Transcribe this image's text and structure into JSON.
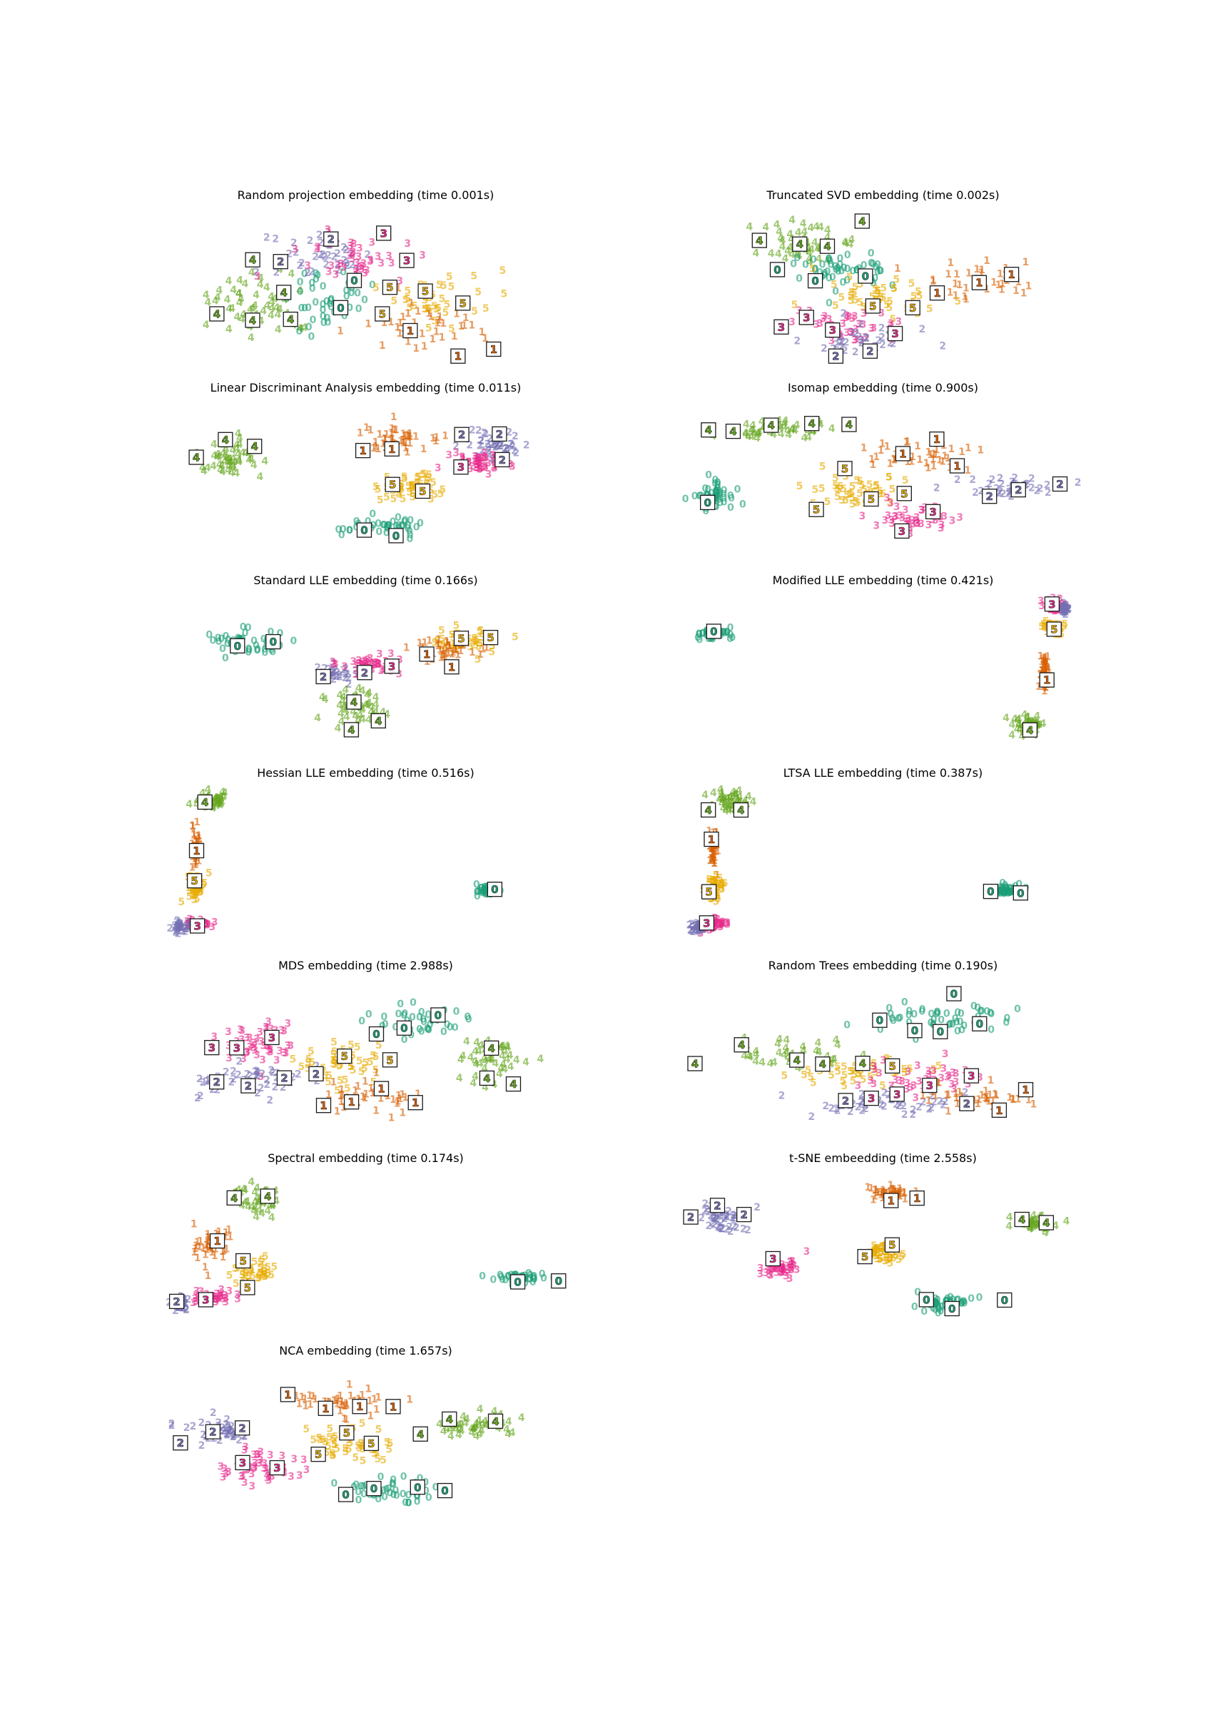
{
  "colors": {
    "0": "#1b9e77",
    "1": "#d95f02",
    "2": "#7570b3",
    "3": "#e7298a",
    "4": "#66a61e",
    "5": "#e6ab02"
  },
  "chart_data": [
    {
      "type": "scatter",
      "title": "Random projection embedding (time 0.001s)",
      "clusters": [
        {
          "label": "4",
          "cx": 0.24,
          "cy": 0.62,
          "sx": 0.12,
          "sy": 0.2,
          "n": 60
        },
        {
          "label": "0",
          "cx": 0.4,
          "cy": 0.56,
          "sx": 0.1,
          "sy": 0.2,
          "n": 45
        },
        {
          "label": "2",
          "cx": 0.38,
          "cy": 0.32,
          "sx": 0.12,
          "sy": 0.16,
          "n": 40
        },
        {
          "label": "3",
          "cx": 0.48,
          "cy": 0.34,
          "sx": 0.13,
          "sy": 0.16,
          "n": 45
        },
        {
          "label": "5",
          "cx": 0.66,
          "cy": 0.58,
          "sx": 0.12,
          "sy": 0.16,
          "n": 45
        },
        {
          "label": "1",
          "cx": 0.66,
          "cy": 0.78,
          "sx": 0.14,
          "sy": 0.14,
          "n": 40
        }
      ]
    },
    {
      "type": "scatter",
      "title": "Truncated SVD embedding (time 0.002s)",
      "clusters": [
        {
          "label": "4",
          "cx": 0.3,
          "cy": 0.22,
          "sx": 0.12,
          "sy": 0.1,
          "n": 55
        },
        {
          "label": "0",
          "cx": 0.4,
          "cy": 0.4,
          "sx": 0.14,
          "sy": 0.12,
          "n": 55
        },
        {
          "label": "1",
          "cx": 0.74,
          "cy": 0.45,
          "sx": 0.14,
          "sy": 0.12,
          "n": 40
        },
        {
          "label": "5",
          "cx": 0.5,
          "cy": 0.56,
          "sx": 0.14,
          "sy": 0.12,
          "n": 45
        },
        {
          "label": "3",
          "cx": 0.42,
          "cy": 0.78,
          "sx": 0.14,
          "sy": 0.1,
          "n": 45
        },
        {
          "label": "2",
          "cx": 0.44,
          "cy": 0.86,
          "sx": 0.12,
          "sy": 0.08,
          "n": 40
        }
      ]
    },
    {
      "type": "scatter",
      "title": "Linear Discriminant Analysis embedding (time 0.011s)",
      "clusters": [
        {
          "label": "4",
          "cx": 0.16,
          "cy": 0.36,
          "sx": 0.07,
          "sy": 0.12,
          "n": 55
        },
        {
          "label": "1",
          "cx": 0.58,
          "cy": 0.26,
          "sx": 0.1,
          "sy": 0.1,
          "n": 50
        },
        {
          "label": "2",
          "cx": 0.82,
          "cy": 0.28,
          "sx": 0.06,
          "sy": 0.1,
          "n": 50
        },
        {
          "label": "3",
          "cx": 0.78,
          "cy": 0.4,
          "sx": 0.07,
          "sy": 0.06,
          "n": 50
        },
        {
          "label": "5",
          "cx": 0.6,
          "cy": 0.56,
          "sx": 0.07,
          "sy": 0.08,
          "n": 50
        },
        {
          "label": "0",
          "cx": 0.54,
          "cy": 0.82,
          "sx": 0.09,
          "sy": 0.07,
          "n": 50
        }
      ]
    },
    {
      "type": "scatter",
      "title": "Isomap embedding (time 0.900s)",
      "clusters": [
        {
          "label": "4",
          "cx": 0.24,
          "cy": 0.18,
          "sx": 0.14,
          "sy": 0.06,
          "n": 55
        },
        {
          "label": "1",
          "cx": 0.6,
          "cy": 0.36,
          "sx": 0.12,
          "sy": 0.08,
          "n": 45
        },
        {
          "label": "0",
          "cx": 0.08,
          "cy": 0.62,
          "sx": 0.05,
          "sy": 0.08,
          "n": 50
        },
        {
          "label": "5",
          "cx": 0.44,
          "cy": 0.58,
          "sx": 0.12,
          "sy": 0.1,
          "n": 50
        },
        {
          "label": "2",
          "cx": 0.84,
          "cy": 0.56,
          "sx": 0.1,
          "sy": 0.05,
          "n": 45
        },
        {
          "label": "3",
          "cx": 0.58,
          "cy": 0.76,
          "sx": 0.1,
          "sy": 0.08,
          "n": 45
        }
      ]
    },
    {
      "type": "scatter",
      "title": "Standard LLE embedding (time 0.166s)",
      "clusters": [
        {
          "label": "0",
          "cx": 0.2,
          "cy": 0.32,
          "sx": 0.08,
          "sy": 0.08,
          "n": 55
        },
        {
          "label": "2",
          "cx": 0.42,
          "cy": 0.52,
          "sx": 0.06,
          "sy": 0.05,
          "n": 35
        },
        {
          "label": "3",
          "cx": 0.52,
          "cy": 0.46,
          "sx": 0.07,
          "sy": 0.05,
          "n": 45
        },
        {
          "label": "5",
          "cx": 0.74,
          "cy": 0.3,
          "sx": 0.08,
          "sy": 0.08,
          "n": 45
        },
        {
          "label": "1",
          "cx": 0.7,
          "cy": 0.36,
          "sx": 0.08,
          "sy": 0.08,
          "n": 40
        },
        {
          "label": "4",
          "cx": 0.48,
          "cy": 0.74,
          "sx": 0.06,
          "sy": 0.1,
          "n": 50
        }
      ]
    },
    {
      "type": "scatter",
      "title": "Modified LLE embedding (time 0.421s)",
      "clusters": [
        {
          "label": "0",
          "cx": 0.08,
          "cy": 0.26,
          "sx": 0.04,
          "sy": 0.04,
          "n": 50
        },
        {
          "label": "3",
          "cx": 0.92,
          "cy": 0.08,
          "sx": 0.02,
          "sy": 0.04,
          "n": 45
        },
        {
          "label": "5",
          "cx": 0.92,
          "cy": 0.22,
          "sx": 0.02,
          "sy": 0.04,
          "n": 45
        },
        {
          "label": "1",
          "cx": 0.9,
          "cy": 0.5,
          "sx": 0.01,
          "sy": 0.12,
          "n": 45
        },
        {
          "label": "4",
          "cx": 0.86,
          "cy": 0.86,
          "sx": 0.03,
          "sy": 0.06,
          "n": 50
        },
        {
          "label": "2",
          "cx": 0.95,
          "cy": 0.1,
          "sx": 0.01,
          "sy": 0.03,
          "n": 30
        }
      ]
    },
    {
      "type": "scatter",
      "title": "Hessian LLE embedding (time 0.516s)",
      "clusters": [
        {
          "label": "4",
          "cx": 0.12,
          "cy": 0.1,
          "sx": 0.04,
          "sy": 0.06,
          "n": 50
        },
        {
          "label": "1",
          "cx": 0.08,
          "cy": 0.4,
          "sx": 0.01,
          "sy": 0.12,
          "n": 45
        },
        {
          "label": "5",
          "cx": 0.08,
          "cy": 0.66,
          "sx": 0.02,
          "sy": 0.08,
          "n": 45
        },
        {
          "label": "3",
          "cx": 0.08,
          "cy": 0.9,
          "sx": 0.03,
          "sy": 0.03,
          "n": 40
        },
        {
          "label": "2",
          "cx": 0.04,
          "cy": 0.92,
          "sx": 0.02,
          "sy": 0.03,
          "n": 35
        },
        {
          "label": "0",
          "cx": 0.8,
          "cy": 0.68,
          "sx": 0.03,
          "sy": 0.03,
          "n": 50
        }
      ]
    },
    {
      "type": "scatter",
      "title": "LTSA LLE embedding (time 0.387s)",
      "clusters": [
        {
          "label": "4",
          "cx": 0.12,
          "cy": 0.1,
          "sx": 0.04,
          "sy": 0.06,
          "n": 50
        },
        {
          "label": "1",
          "cx": 0.08,
          "cy": 0.4,
          "sx": 0.01,
          "sy": 0.12,
          "n": 45
        },
        {
          "label": "5",
          "cx": 0.08,
          "cy": 0.66,
          "sx": 0.02,
          "sy": 0.08,
          "n": 45
        },
        {
          "label": "3",
          "cx": 0.08,
          "cy": 0.9,
          "sx": 0.03,
          "sy": 0.03,
          "n": 40
        },
        {
          "label": "2",
          "cx": 0.04,
          "cy": 0.92,
          "sx": 0.02,
          "sy": 0.03,
          "n": 35
        },
        {
          "label": "0",
          "cx": 0.8,
          "cy": 0.68,
          "sx": 0.03,
          "sy": 0.03,
          "n": 50
        }
      ]
    },
    {
      "type": "scatter",
      "title": "MDS embedding (time 2.988s)",
      "clusters": [
        {
          "label": "0",
          "cx": 0.64,
          "cy": 0.28,
          "sx": 0.12,
          "sy": 0.1,
          "n": 50
        },
        {
          "label": "3",
          "cx": 0.22,
          "cy": 0.4,
          "sx": 0.1,
          "sy": 0.12,
          "n": 50
        },
        {
          "label": "2",
          "cx": 0.22,
          "cy": 0.66,
          "sx": 0.12,
          "sy": 0.1,
          "n": 50
        },
        {
          "label": "5",
          "cx": 0.44,
          "cy": 0.56,
          "sx": 0.1,
          "sy": 0.14,
          "n": 50
        },
        {
          "label": "1",
          "cx": 0.52,
          "cy": 0.78,
          "sx": 0.12,
          "sy": 0.1,
          "n": 45
        },
        {
          "label": "4",
          "cx": 0.82,
          "cy": 0.54,
          "sx": 0.08,
          "sy": 0.14,
          "n": 50
        }
      ]
    },
    {
      "type": "scatter",
      "title": "Random Trees embedding (time 0.190s)",
      "clusters": [
        {
          "label": "0",
          "cx": 0.62,
          "cy": 0.26,
          "sx": 0.16,
          "sy": 0.1,
          "n": 55
        },
        {
          "label": "4",
          "cx": 0.26,
          "cy": 0.5,
          "sx": 0.14,
          "sy": 0.1,
          "n": 45
        },
        {
          "label": "5",
          "cx": 0.44,
          "cy": 0.6,
          "sx": 0.14,
          "sy": 0.1,
          "n": 45
        },
        {
          "label": "3",
          "cx": 0.6,
          "cy": 0.66,
          "sx": 0.16,
          "sy": 0.1,
          "n": 45
        },
        {
          "label": "2",
          "cx": 0.5,
          "cy": 0.8,
          "sx": 0.16,
          "sy": 0.08,
          "n": 45
        },
        {
          "label": "1",
          "cx": 0.74,
          "cy": 0.78,
          "sx": 0.14,
          "sy": 0.08,
          "n": 40
        }
      ]
    },
    {
      "type": "scatter",
      "title": "Spectral embedding (time 0.174s)",
      "clusters": [
        {
          "label": "4",
          "cx": 0.24,
          "cy": 0.18,
          "sx": 0.06,
          "sy": 0.08,
          "n": 45
        },
        {
          "label": "1",
          "cx": 0.12,
          "cy": 0.46,
          "sx": 0.05,
          "sy": 0.12,
          "n": 40
        },
        {
          "label": "5",
          "cx": 0.22,
          "cy": 0.64,
          "sx": 0.06,
          "sy": 0.08,
          "n": 40
        },
        {
          "label": "3",
          "cx": 0.12,
          "cy": 0.82,
          "sx": 0.05,
          "sy": 0.05,
          "n": 40
        },
        {
          "label": "2",
          "cx": 0.04,
          "cy": 0.86,
          "sx": 0.02,
          "sy": 0.04,
          "n": 35
        },
        {
          "label": "0",
          "cx": 0.88,
          "cy": 0.7,
          "sx": 0.06,
          "sy": 0.03,
          "n": 50
        }
      ]
    },
    {
      "type": "scatter",
      "title": "t-SNE embeedding (time 2.558s)",
      "clusters": [
        {
          "label": "2",
          "cx": 0.1,
          "cy": 0.3,
          "sx": 0.05,
          "sy": 0.07,
          "n": 50
        },
        {
          "label": "1",
          "cx": 0.52,
          "cy": 0.14,
          "sx": 0.05,
          "sy": 0.04,
          "n": 45
        },
        {
          "label": "4",
          "cx": 0.88,
          "cy": 0.34,
          "sx": 0.05,
          "sy": 0.04,
          "n": 50
        },
        {
          "label": "5",
          "cx": 0.5,
          "cy": 0.52,
          "sx": 0.04,
          "sy": 0.07,
          "n": 50
        },
        {
          "label": "3",
          "cx": 0.24,
          "cy": 0.62,
          "sx": 0.05,
          "sy": 0.06,
          "n": 50
        },
        {
          "label": "0",
          "cx": 0.66,
          "cy": 0.86,
          "sx": 0.06,
          "sy": 0.05,
          "n": 50
        }
      ]
    },
    {
      "type": "scatter",
      "title": "NCA embedding (time 1.657s)",
      "clusters": [
        {
          "label": "2",
          "cx": 0.14,
          "cy": 0.44,
          "sx": 0.08,
          "sy": 0.08,
          "n": 50
        },
        {
          "label": "1",
          "cx": 0.44,
          "cy": 0.24,
          "sx": 0.12,
          "sy": 0.08,
          "n": 50
        },
        {
          "label": "4",
          "cx": 0.76,
          "cy": 0.4,
          "sx": 0.1,
          "sy": 0.08,
          "n": 50
        },
        {
          "label": "5",
          "cx": 0.46,
          "cy": 0.52,
          "sx": 0.1,
          "sy": 0.1,
          "n": 50
        },
        {
          "label": "3",
          "cx": 0.24,
          "cy": 0.66,
          "sx": 0.08,
          "sy": 0.1,
          "n": 50
        },
        {
          "label": "0",
          "cx": 0.56,
          "cy": 0.82,
          "sx": 0.12,
          "sy": 0.07,
          "n": 50
        }
      ]
    }
  ]
}
